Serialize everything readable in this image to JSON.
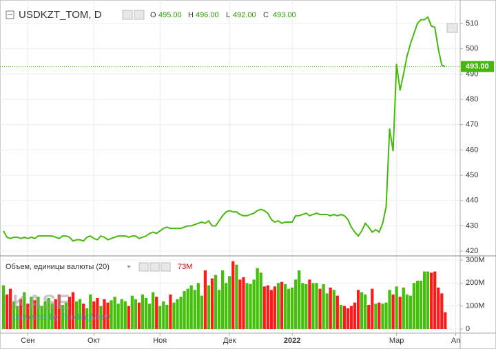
{
  "chart_data": [
    {
      "type": "line",
      "title": "USDKZT_TOM, D",
      "ohlc": [
        {
          "name": "O",
          "value": {
            "value": 495,
            "label": "495.00"
          }
        },
        {
          "name": "H",
          "value": {
            "value": 496,
            "label": "496.00"
          }
        },
        {
          "name": "L",
          "value": {
            "value": 492,
            "label": "492.00"
          }
        },
        {
          "name": "C",
          "value": {
            "value": 493,
            "label": "493.00"
          }
        }
      ],
      "current": {
        "value": 493,
        "label": "493.00"
      },
      "watermark": [
        "KASE",
        "powered by TradingView"
      ],
      "color": "#45b80c",
      "categories": [
        null,
        null,
        null,
        null,
        null,
        null,
        null,
        "Сен",
        null,
        null,
        null,
        null,
        null,
        null,
        null,
        null,
        null,
        null,
        null,
        null,
        null,
        null,
        null,
        null,
        null,
        null,
        "Окт",
        null,
        null,
        null,
        null,
        null,
        null,
        null,
        null,
        null,
        null,
        null,
        null,
        null,
        null,
        null,
        null,
        null,
        null,
        "Ноя",
        null,
        null,
        null,
        null,
        null,
        null,
        null,
        null,
        null,
        null,
        null,
        null,
        null,
        null,
        null,
        null,
        null,
        null,
        null,
        "Дек",
        null,
        null,
        null,
        null,
        null,
        null,
        null,
        null,
        null,
        null,
        null,
        null,
        null,
        null,
        null,
        null,
        null,
        "2022",
        null,
        null,
        null,
        null,
        null,
        null,
        null,
        null,
        null,
        null,
        null,
        null,
        null,
        null,
        null,
        null,
        null,
        null,
        null,
        null,
        null,
        null,
        null,
        null,
        null,
        null,
        null,
        null,
        null,
        "Мар",
        null,
        null,
        null,
        null,
        null,
        null,
        null,
        null,
        null,
        null,
        null,
        null,
        null,
        null,
        null,
        null,
        "Ап"
      ],
      "values": [
        428,
        425.5,
        425,
        425.5,
        425.5,
        425,
        425.5,
        425,
        425.5,
        425,
        426,
        426,
        426,
        426,
        426,
        425.5,
        425,
        426,
        426,
        425.5,
        424,
        424.5,
        424.5,
        424,
        425.5,
        426,
        425,
        424.5,
        426,
        425.5,
        424.5,
        425,
        425.5,
        426,
        426,
        426,
        425.5,
        426,
        426,
        425,
        425.5,
        426,
        427,
        427.5,
        427,
        428,
        429,
        429.5,
        429,
        429,
        429,
        429,
        429.5,
        430,
        430,
        430.5,
        431,
        431.5,
        431,
        432,
        430,
        430,
        432,
        434,
        435.5,
        436,
        435.5,
        435.5,
        434.5,
        434,
        434,
        434.5,
        435,
        436,
        436.5,
        436,
        435,
        432.5,
        431.5,
        432,
        431,
        431.5,
        431.5,
        431.5,
        434,
        434,
        434.5,
        435,
        434,
        434.5,
        435,
        434.5,
        434.5,
        434.5,
        434,
        434.5,
        434,
        434.5,
        434,
        432.5,
        429.5,
        427.5,
        426,
        428,
        431,
        429.5,
        427.5,
        428.5,
        427.5,
        431,
        437.5,
        468.5,
        459.5,
        494,
        483.5,
        490,
        497,
        502,
        506,
        510,
        511.5,
        511.5,
        512.5,
        509,
        508.5,
        500,
        493.5,
        493,
        null,
        null,
        null
      ],
      "ylim": [
        418.4,
        517.1
      ],
      "yticks": [
        420,
        430,
        440,
        450,
        460,
        470,
        480,
        490,
        500,
        510
      ],
      "grid": true
    },
    {
      "type": "bar",
      "title": "Объем, единицы валюты (20)",
      "current": {
        "value": 73,
        "label": "73M"
      },
      "up_color": "#44c00a",
      "down_color": "#ff1a1a",
      "values": [
        190,
        150,
        175,
        120,
        100,
        130,
        160,
        110,
        140,
        125,
        140,
        100,
        120,
        135,
        110,
        130,
        150,
        105,
        115,
        140,
        160,
        120,
        130,
        110,
        90,
        150,
        120,
        135,
        100,
        130,
        115,
        125,
        140,
        110,
        130,
        120,
        100,
        145,
        130,
        115,
        150,
        135,
        110,
        160,
        140,
        100,
        120,
        105,
        150,
        115,
        130,
        140,
        165,
        175,
        190,
        170,
        200,
        145,
        255,
        190,
        220,
        235,
        170,
        255,
        200,
        230,
        295,
        280,
        215,
        225,
        200,
        195,
        215,
        265,
        245,
        185,
        190,
        170,
        185,
        200,
        205,
        195,
        175,
        180,
        215,
        255,
        200,
        195,
        215,
        200,
        200,
        175,
        195,
        155,
        180,
        170,
        145,
        105,
        100,
        90,
        100,
        115,
        170,
        160,
        150,
        105,
        175,
        110,
        115,
        110,
        115,
        170,
        150,
        185,
        140,
        180,
        150,
        145,
        200,
        210,
        210,
        250,
        250,
        245,
        250,
        180,
        155,
        73,
        null,
        null,
        null
      ],
      "ylim": [
        -18,
        315
      ],
      "yticks": [
        0,
        {
          "value": 100,
          "label": "100M"
        },
        {
          "value": 200,
          "label": "200M"
        },
        {
          "value": 300,
          "label": "300M"
        }
      ],
      "grid": true
    }
  ]
}
